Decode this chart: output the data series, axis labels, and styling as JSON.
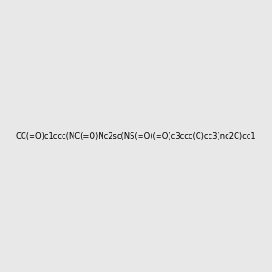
{
  "smiles": "CC(=O)c1ccc(NC(=O)Nc2sc(NS(=O)(=O)c3ccc(C)cc3)nc2C)cc1",
  "image_size": 300,
  "background_color": "#e8e8e8",
  "title": ""
}
